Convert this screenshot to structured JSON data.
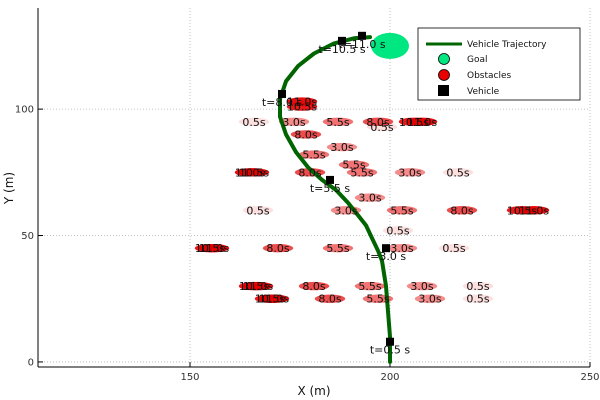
{
  "colors": {
    "trajectory": "#006400",
    "goal": "#00E680",
    "obstacle": "#E60000",
    "vehicle": "#000000",
    "grid": "#b0b0b0"
  },
  "chart_data": {
    "type": "scatter",
    "xlabel": "X (m)",
    "ylabel": "Y (m)",
    "xlim": [
      112,
      250
    ],
    "ylim": [
      -2,
      140
    ],
    "xticks": [
      150,
      200,
      250
    ],
    "yticks": [
      0,
      50,
      100
    ],
    "grid": true,
    "legend_position": "top-right",
    "legend": [
      {
        "label": "Vehicle Trajectory",
        "kind": "line"
      },
      {
        "label": "Goal",
        "kind": "circle"
      },
      {
        "label": "Obstacles",
        "kind": "circle"
      },
      {
        "label": "Vehicle",
        "kind": "square"
      }
    ],
    "trajectory": [
      [
        200,
        0
      ],
      [
        200,
        10
      ],
      [
        199.5,
        20
      ],
      [
        199,
        30
      ],
      [
        198.5,
        35
      ],
      [
        198,
        40
      ],
      [
        197,
        44
      ],
      [
        195.5,
        49
      ],
      [
        194,
        54
      ],
      [
        192,
        58
      ],
      [
        189.5,
        63
      ],
      [
        186.5,
        68
      ],
      [
        183,
        72
      ],
      [
        179.5,
        77
      ],
      [
        176.5,
        83
      ],
      [
        174,
        90
      ],
      [
        172.5,
        97
      ],
      [
        172.5,
        104
      ],
      [
        174,
        111
      ],
      [
        177,
        117
      ],
      [
        181,
        122
      ],
      [
        186,
        126
      ],
      [
        191,
        128
      ],
      [
        195,
        128.5
      ]
    ],
    "goal": {
      "x": 200,
      "y": 125
    },
    "vehicles": [
      {
        "x": 200,
        "y": 8,
        "label": "t=0.5 s"
      },
      {
        "x": 199,
        "y": 45,
        "label": "t=3.0 s"
      },
      {
        "x": 185,
        "y": 72,
        "label": "t=5.5 s"
      },
      {
        "x": 173,
        "y": 106,
        "label": "t=8.0 s"
      },
      {
        "x": 188,
        "y": 127,
        "label": "t=10.5 s"
      },
      {
        "x": 193,
        "y": 129,
        "label": "t=11.0 s"
      }
    ],
    "obstacles": [
      {
        "x": 198,
        "y": 93,
        "label": "0.5s",
        "alpha": 0.12
      },
      {
        "x": 188,
        "y": 85,
        "label": "3.0s",
        "alpha": 0.45
      },
      {
        "x": 181,
        "y": 82,
        "label": "5.5s",
        "alpha": 0.55
      },
      {
        "x": 179,
        "y": 90,
        "label": "8.0s",
        "alpha": 0.7
      },
      {
        "x": 178,
        "y": 101,
        "label": "10.5s",
        "alpha": 0.9
      },
      {
        "x": 178,
        "y": 103,
        "label": "11.0s",
        "alpha": 0.95
      },
      {
        "x": 166,
        "y": 95,
        "label": "0.5s",
        "alpha": 0.12
      },
      {
        "x": 176,
        "y": 95,
        "label": "3.0s",
        "alpha": 0.45
      },
      {
        "x": 187,
        "y": 95,
        "label": "5.5s",
        "alpha": 0.55
      },
      {
        "x": 197,
        "y": 95,
        "label": "8.0s",
        "alpha": 0.7
      },
      {
        "x": 206,
        "y": 95,
        "label": "10.5s",
        "alpha": 0.9
      },
      {
        "x": 208,
        "y": 95,
        "label": "11.0s",
        "alpha": 0.95
      },
      {
        "x": 217,
        "y": 75,
        "label": "0.5s",
        "alpha": 0.12
      },
      {
        "x": 205,
        "y": 75,
        "label": "3.0s",
        "alpha": 0.45
      },
      {
        "x": 193,
        "y": 75,
        "label": "5.5s",
        "alpha": 0.55
      },
      {
        "x": 180,
        "y": 75,
        "label": "8.0s",
        "alpha": 0.7
      },
      {
        "x": 166,
        "y": 75,
        "label": "10.5s",
        "alpha": 0.9
      },
      {
        "x": 165,
        "y": 75,
        "label": "11.0s",
        "alpha": 0.95
      },
      {
        "x": 202,
        "y": 52,
        "label": "0.5s",
        "alpha": 0.12
      },
      {
        "x": 195,
        "y": 65,
        "label": "3.0s",
        "alpha": 0.45
      },
      {
        "x": 191,
        "y": 78,
        "label": "5.5s",
        "alpha": 0.55
      },
      {
        "x": 167,
        "y": 60,
        "label": "0.5s",
        "alpha": 0.12
      },
      {
        "x": 189,
        "y": 60,
        "label": "3.0s",
        "alpha": 0.45
      },
      {
        "x": 203,
        "y": 60,
        "label": "5.5s",
        "alpha": 0.55
      },
      {
        "x": 218,
        "y": 60,
        "label": "8.0s",
        "alpha": 0.7
      },
      {
        "x": 233,
        "y": 60,
        "label": "10.5s",
        "alpha": 0.9
      },
      {
        "x": 236,
        "y": 60,
        "label": "11.0s",
        "alpha": 0.95
      },
      {
        "x": 216,
        "y": 45,
        "label": "0.5s",
        "alpha": 0.12
      },
      {
        "x": 203,
        "y": 45,
        "label": "3.0s",
        "alpha": 0.45
      },
      {
        "x": 187,
        "y": 45,
        "label": "5.5s",
        "alpha": 0.55
      },
      {
        "x": 172,
        "y": 45,
        "label": "8.0s",
        "alpha": 0.7
      },
      {
        "x": 155,
        "y": 45,
        "label": "10.5s",
        "alpha": 0.9
      },
      {
        "x": 156,
        "y": 45,
        "label": "11.0s",
        "alpha": 0.95
      },
      {
        "x": 222,
        "y": 30,
        "label": "0.5s",
        "alpha": 0.12
      },
      {
        "x": 208,
        "y": 30,
        "label": "3.0s",
        "alpha": 0.45
      },
      {
        "x": 195,
        "y": 30,
        "label": "5.5s",
        "alpha": 0.55
      },
      {
        "x": 181,
        "y": 30,
        "label": "8.0s",
        "alpha": 0.7
      },
      {
        "x": 166,
        "y": 30,
        "label": "10.5s",
        "alpha": 0.9
      },
      {
        "x": 167,
        "y": 30,
        "label": "11.0s",
        "alpha": 0.95
      },
      {
        "x": 222,
        "y": 25,
        "label": "0.5s",
        "alpha": 0.12
      },
      {
        "x": 210,
        "y": 25,
        "label": "3.0s",
        "alpha": 0.45
      },
      {
        "x": 197,
        "y": 25,
        "label": "5.5s",
        "alpha": 0.55
      },
      {
        "x": 185,
        "y": 25,
        "label": "8.0s",
        "alpha": 0.7
      },
      {
        "x": 170,
        "y": 25,
        "label": "10.5s",
        "alpha": 0.9
      },
      {
        "x": 171,
        "y": 25,
        "label": "11.0s",
        "alpha": 0.95
      }
    ]
  }
}
